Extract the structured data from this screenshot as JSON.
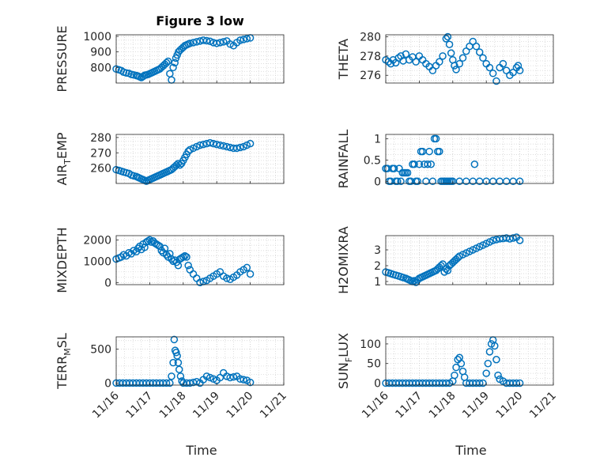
{
  "figure": {
    "title": "Figure 3 low",
    "background": "#ffffff",
    "marker_color": "#0072BD"
  },
  "chart_data": [
    {
      "id": "pressure",
      "type": "scatter",
      "title": "Figure 3 low",
      "ylabel": "PRESSURE",
      "xlabel": "",
      "xlim": [
        0,
        5
      ],
      "ylim": [
        700,
        1010
      ],
      "xticks": [
        0,
        1,
        2,
        3,
        4,
        5
      ],
      "xticklabels": [
        "",
        "",
        "",
        "",
        "",
        ""
      ],
      "yticks": [
        800,
        900,
        1000
      ],
      "yticklabels": [
        "800",
        "900",
        "1000"
      ],
      "grid": true,
      "x": [
        0,
        0.08,
        0.15,
        0.22,
        0.3,
        0.38,
        0.45,
        0.52,
        0.6,
        0.65,
        0.7,
        0.75,
        0.8,
        0.85,
        0.9,
        0.95,
        1.0,
        1.05,
        1.1,
        1.15,
        1.2,
        1.25,
        1.3,
        1.35,
        1.4,
        1.45,
        1.5,
        1.55,
        1.6,
        1.65,
        1.7,
        1.75,
        1.78,
        1.82,
        1.86,
        1.9,
        1.95,
        2.0,
        2.05,
        2.1,
        2.15,
        2.2,
        2.3,
        2.4,
        2.5,
        2.6,
        2.7,
        2.8,
        2.9,
        3.0,
        3.1,
        3.2,
        3.3,
        3.4,
        3.5,
        3.6,
        3.7,
        3.8,
        3.9,
        4.0
      ],
      "y": [
        790,
        785,
        780,
        770,
        765,
        762,
        755,
        752,
        748,
        745,
        740,
        735,
        742,
        750,
        752,
        755,
        760,
        765,
        770,
        775,
        780,
        785,
        790,
        800,
        810,
        820,
        830,
        840,
        760,
        720,
        800,
        830,
        860,
        880,
        900,
        910,
        920,
        930,
        940,
        945,
        950,
        955,
        960,
        965,
        970,
        975,
        972,
        968,
        960,
        955,
        960,
        965,
        970,
        950,
        940,
        960,
        975,
        980,
        985,
        990
      ]
    },
    {
      "id": "theta",
      "type": "scatter",
      "ylabel": "THETA",
      "xlabel": "",
      "xlim": [
        0,
        5
      ],
      "ylim": [
        275.2,
        280.2
      ],
      "xticks": [
        0,
        1,
        2,
        3,
        4,
        5
      ],
      "xticklabels": [
        "",
        "",
        "",
        "",
        "",
        ""
      ],
      "yticks": [
        276,
        278,
        280
      ],
      "yticklabels": [
        "276",
        "278",
        "280"
      ],
      "grid": true,
      "x": [
        0,
        0.08,
        0.15,
        0.22,
        0.3,
        0.38,
        0.45,
        0.52,
        0.6,
        0.7,
        0.8,
        0.9,
        1.0,
        1.1,
        1.2,
        1.3,
        1.4,
        1.5,
        1.6,
        1.7,
        1.8,
        1.85,
        1.9,
        1.95,
        2.0,
        2.05,
        2.1,
        2.2,
        2.3,
        2.4,
        2.5,
        2.6,
        2.7,
        2.8,
        2.9,
        3.0,
        3.1,
        3.2,
        3.3,
        3.4,
        3.5,
        3.6,
        3.7,
        3.8,
        3.9,
        3.95,
        4.0
      ],
      "y": [
        277.6,
        277.4,
        277.2,
        277.6,
        277.3,
        277.8,
        278.0,
        277.5,
        278.2,
        277.6,
        277.9,
        277.4,
        278.0,
        277.6,
        277.2,
        276.9,
        276.5,
        277.0,
        277.4,
        278.0,
        279.8,
        280.0,
        279.2,
        278.3,
        277.6,
        277.0,
        276.6,
        277.2,
        277.8,
        278.5,
        279.0,
        279.5,
        279.0,
        278.4,
        277.8,
        277.2,
        276.8,
        276.2,
        275.4,
        276.8,
        277.2,
        276.5,
        276.0,
        276.3,
        276.8,
        277.0,
        276.5
      ]
    },
    {
      "id": "air_temp",
      "type": "scatter",
      "ylabel": "AIR_TEMP",
      "xlabel": "",
      "xlim": [
        0,
        5
      ],
      "ylim": [
        250,
        282
      ],
      "xticks": [
        0,
        1,
        2,
        3,
        4,
        5
      ],
      "xticklabels": [
        "",
        "",
        "",
        "",
        "",
        ""
      ],
      "yticks": [
        260,
        270,
        280
      ],
      "yticklabels": [
        "260",
        "270",
        "280"
      ],
      "grid": true,
      "x": [
        0,
        0.08,
        0.15,
        0.22,
        0.3,
        0.38,
        0.45,
        0.52,
        0.6,
        0.65,
        0.7,
        0.75,
        0.8,
        0.85,
        0.9,
        0.95,
        1.0,
        1.05,
        1.1,
        1.15,
        1.2,
        1.25,
        1.3,
        1.35,
        1.4,
        1.45,
        1.5,
        1.55,
        1.6,
        1.65,
        1.7,
        1.75,
        1.8,
        1.85,
        1.9,
        1.95,
        2.0,
        2.05,
        2.1,
        2.15,
        2.2,
        2.3,
        2.4,
        2.5,
        2.6,
        2.7,
        2.8,
        2.9,
        3.0,
        3.1,
        3.2,
        3.3,
        3.4,
        3.5,
        3.6,
        3.7,
        3.8,
        3.9,
        4.0
      ],
      "y": [
        259,
        258.5,
        258,
        257.5,
        257,
        256.5,
        255.5,
        255,
        254.5,
        254,
        253.5,
        253,
        252.5,
        252,
        251.5,
        252,
        252.5,
        253,
        253.5,
        254,
        254.5,
        255,
        255.5,
        256,
        256.5,
        257,
        257.5,
        258,
        258.5,
        259,
        260,
        261,
        262,
        263,
        262,
        263,
        265,
        267,
        269,
        271,
        272,
        273,
        274,
        275,
        275.5,
        276,
        276.5,
        276,
        275.5,
        275,
        274.5,
        274,
        273.5,
        273,
        273,
        273.5,
        274,
        275,
        276
      ]
    },
    {
      "id": "rainfall",
      "type": "scatter",
      "ylabel": "RAINFALL",
      "xlabel": "",
      "xlim": [
        0,
        5
      ],
      "ylim": [
        -0.05,
        1.1
      ],
      "xticks": [
        0,
        1,
        2,
        3,
        4,
        5
      ],
      "xticklabels": [
        "",
        "",
        "",
        "",
        "",
        ""
      ],
      "yticks": [
        0,
        0.5,
        1
      ],
      "yticklabels": [
        "0",
        "0.5",
        "1"
      ],
      "grid": true,
      "x": [
        0,
        0.05,
        0.1,
        0.15,
        0.2,
        0.25,
        0.3,
        0.35,
        0.4,
        0.45,
        0.5,
        0.55,
        0.6,
        0.65,
        0.7,
        0.75,
        0.8,
        0.85,
        0.9,
        0.95,
        1.0,
        1.05,
        1.1,
        1.15,
        1.2,
        1.25,
        1.3,
        1.35,
        1.4,
        1.45,
        1.5,
        1.55,
        1.6,
        1.65,
        1.7,
        1.75,
        1.8,
        1.85,
        1.9,
        1.95,
        2.0,
        2.2,
        2.4,
        2.6,
        2.8,
        3.0,
        3.2,
        3.4,
        3.6,
        3.8,
        4.0,
        2.65
      ],
      "y": [
        0.3,
        0.3,
        0,
        0,
        0.3,
        0.3,
        0,
        0,
        0.3,
        0,
        0.2,
        0.2,
        0.2,
        0.2,
        0,
        0,
        0.4,
        0.4,
        0,
        0,
        0.4,
        0.7,
        0.7,
        0.4,
        0,
        0.4,
        0.7,
        0.4,
        0,
        1,
        1,
        0.7,
        0.7,
        0,
        0,
        0,
        0,
        0,
        0,
        0,
        0,
        0,
        0,
        0,
        0,
        0,
        0,
        0,
        0,
        0,
        0,
        0.4
      ]
    },
    {
      "id": "mixdepth",
      "type": "scatter",
      "ylabel": "MIXDEPTH",
      "xlabel": "",
      "xlim": [
        0,
        5
      ],
      "ylim": [
        -100,
        2200
      ],
      "xticks": [
        0,
        1,
        2,
        3,
        4,
        5
      ],
      "xticklabels": [
        "",
        "",
        "",
        "",
        "",
        ""
      ],
      "yticks": [
        0,
        1000,
        2000
      ],
      "yticklabels": [
        "0",
        "1000",
        "2000"
      ],
      "grid": true,
      "x": [
        0,
        0.08,
        0.15,
        0.22,
        0.3,
        0.38,
        0.45,
        0.52,
        0.6,
        0.65,
        0.7,
        0.75,
        0.8,
        0.85,
        0.9,
        0.95,
        1.0,
        1.05,
        1.1,
        1.15,
        1.2,
        1.25,
        1.3,
        1.35,
        1.4,
        1.45,
        1.5,
        1.55,
        1.6,
        1.65,
        1.7,
        1.75,
        1.8,
        1.85,
        1.9,
        1.95,
        2.0,
        2.05,
        2.1,
        2.15,
        2.2,
        2.3,
        2.4,
        2.5,
        2.6,
        2.7,
        2.8,
        2.9,
        3.0,
        3.1,
        3.2,
        3.3,
        3.4,
        3.5,
        3.6,
        3.7,
        3.8,
        3.9,
        4.0
      ],
      "y": [
        1100,
        1150,
        1200,
        1300,
        1250,
        1400,
        1350,
        1500,
        1450,
        1600,
        1700,
        1550,
        1800,
        1650,
        1900,
        1950,
        2000,
        1900,
        1950,
        1850,
        1800,
        1750,
        1700,
        1500,
        1400,
        1600,
        1300,
        1200,
        1350,
        1100,
        1000,
        1050,
        950,
        800,
        1100,
        1150,
        1200,
        1250,
        1200,
        800,
        600,
        400,
        200,
        0,
        50,
        100,
        200,
        300,
        400,
        500,
        300,
        200,
        150,
        250,
        350,
        500,
        600,
        700,
        400
      ]
    },
    {
      "id": "h2omixra",
      "type": "scatter",
      "ylabel": "H2OMIXRA",
      "xlabel": "",
      "xlim": [
        0,
        5
      ],
      "ylim": [
        0.8,
        3.9
      ],
      "xticks": [
        0,
        1,
        2,
        3,
        4,
        5
      ],
      "xticklabels": [
        "",
        "",
        "",
        "",
        "",
        ""
      ],
      "yticks": [
        1,
        2,
        3
      ],
      "yticklabels": [
        "1",
        "2",
        "3"
      ],
      "grid": true,
      "x": [
        0,
        0.08,
        0.15,
        0.22,
        0.3,
        0.38,
        0.45,
        0.52,
        0.6,
        0.65,
        0.7,
        0.75,
        0.8,
        0.85,
        0.9,
        0.95,
        1.0,
        1.05,
        1.1,
        1.15,
        1.2,
        1.25,
        1.3,
        1.35,
        1.4,
        1.45,
        1.5,
        1.55,
        1.6,
        1.65,
        1.7,
        1.75,
        1.8,
        1.85,
        1.9,
        1.95,
        2.0,
        2.05,
        2.1,
        2.15,
        2.2,
        2.3,
        2.4,
        2.5,
        2.6,
        2.7,
        2.8,
        2.9,
        3.0,
        3.1,
        3.2,
        3.3,
        3.4,
        3.5,
        3.6,
        3.7,
        3.8,
        3.9,
        4.0
      ],
      "y": [
        1.6,
        1.55,
        1.5,
        1.45,
        1.4,
        1.35,
        1.3,
        1.25,
        1.2,
        1.15,
        1.1,
        1.05,
        1.0,
        1.05,
        0.95,
        1.1,
        1.2,
        1.25,
        1.3,
        1.35,
        1.4,
        1.45,
        1.5,
        1.55,
        1.6,
        1.65,
        1.7,
        1.8,
        1.9,
        2.0,
        2.1,
        1.6,
        1.8,
        1.7,
        2.0,
        2.1,
        2.2,
        2.3,
        2.4,
        2.5,
        2.6,
        2.7,
        2.8,
        2.9,
        3.0,
        3.1,
        3.2,
        3.3,
        3.4,
        3.5,
        3.6,
        3.65,
        3.7,
        3.72,
        3.75,
        3.7,
        3.75,
        3.8,
        3.6
      ]
    },
    {
      "id": "terr_msl",
      "type": "scatter",
      "ylabel": "TERR_MSL",
      "xlabel": "Time",
      "xlim": [
        0,
        5
      ],
      "ylim": [
        -30,
        680
      ],
      "xticks": [
        0,
        1,
        2,
        3,
        4,
        5
      ],
      "xticklabels": [
        "11/16",
        "11/17",
        "11/18",
        "11/19",
        "11/20",
        "11/21"
      ],
      "yticks": [
        0,
        500
      ],
      "yticklabels": [
        "0",
        "500"
      ],
      "grid": true,
      "x": [
        0,
        0.1,
        0.2,
        0.3,
        0.4,
        0.5,
        0.6,
        0.7,
        0.8,
        0.9,
        1.0,
        1.1,
        1.2,
        1.3,
        1.4,
        1.5,
        1.6,
        1.65,
        1.7,
        1.73,
        1.76,
        1.79,
        1.82,
        1.85,
        1.88,
        1.92,
        1.96,
        2.0,
        2.1,
        2.2,
        2.3,
        2.4,
        2.5,
        2.6,
        2.7,
        2.8,
        2.9,
        3.0,
        3.1,
        3.2,
        3.3,
        3.4,
        3.5,
        3.6,
        3.7,
        3.8,
        3.9,
        4.0
      ],
      "y": [
        0,
        0,
        0,
        0,
        0,
        0,
        0,
        0,
        0,
        0,
        0,
        0,
        0,
        0,
        0,
        0,
        0,
        100,
        300,
        640,
        480,
        450,
        400,
        300,
        200,
        100,
        30,
        0,
        0,
        0,
        10,
        20,
        0,
        50,
        100,
        80,
        60,
        40,
        80,
        150,
        100,
        80,
        90,
        100,
        60,
        50,
        40,
        10
      ]
    },
    {
      "id": "sun_flux",
      "type": "scatter",
      "ylabel": "SUN_FLUX",
      "xlabel": "Time",
      "xlim": [
        0,
        5
      ],
      "ylim": [
        -5,
        118
      ],
      "xticks": [
        0,
        1,
        2,
        3,
        4,
        5
      ],
      "xticklabels": [
        "11/16",
        "11/17",
        "11/18",
        "11/19",
        "11/20",
        "11/21"
      ],
      "yticks": [
        0,
        50,
        100
      ],
      "yticklabels": [
        "0",
        "50",
        "100"
      ],
      "grid": true,
      "x": [
        0,
        0.1,
        0.2,
        0.3,
        0.4,
        0.5,
        0.6,
        0.7,
        0.8,
        0.9,
        1.0,
        1.1,
        1.2,
        1.3,
        1.4,
        1.5,
        1.6,
        1.7,
        1.8,
        1.9,
        2.0,
        2.05,
        2.1,
        2.15,
        2.2,
        2.25,
        2.3,
        2.35,
        2.4,
        2.5,
        2.6,
        2.7,
        2.8,
        2.9,
        3.0,
        3.05,
        3.1,
        3.15,
        3.2,
        3.25,
        3.3,
        3.35,
        3.4,
        3.5,
        3.6,
        3.7,
        3.8,
        3.9,
        4.0
      ],
      "y": [
        0,
        0,
        0,
        0,
        0,
        0,
        0,
        0,
        0,
        0,
        0,
        0,
        0,
        0,
        0,
        0,
        0,
        0,
        0,
        0,
        5,
        20,
        40,
        60,
        65,
        50,
        30,
        15,
        0,
        0,
        0,
        0,
        0,
        0,
        25,
        50,
        80,
        100,
        110,
        95,
        60,
        20,
        10,
        5,
        0,
        0,
        0,
        0,
        0
      ]
    }
  ]
}
